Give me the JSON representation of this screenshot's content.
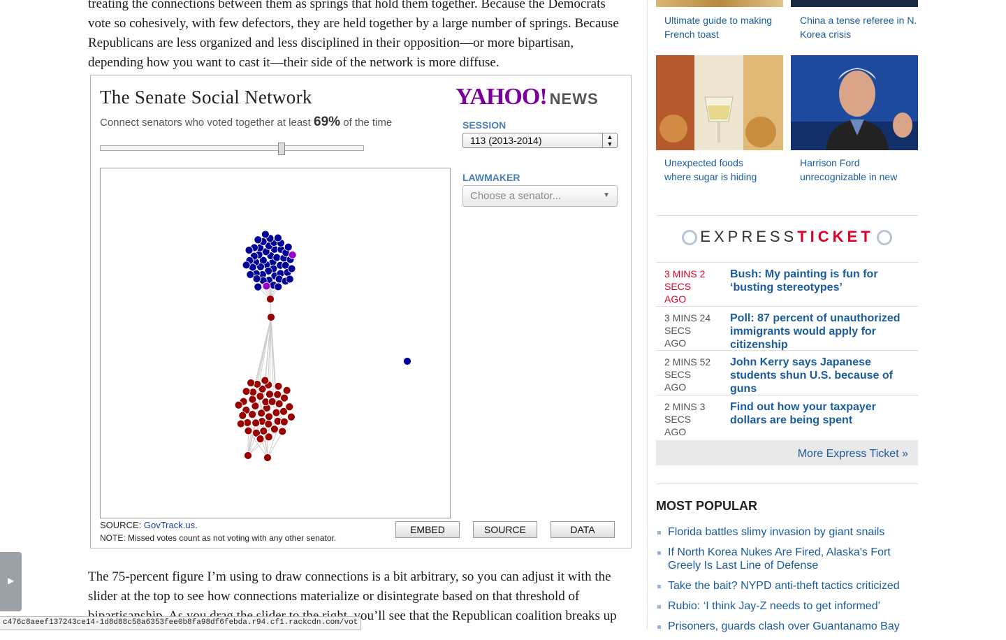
{
  "article": {
    "top_lines": [
      "treating the connections between them as springs that hold them together. Because the Democrats",
      "vote so cohesively, with few defectors, they are held together by a large number of springs. Because",
      "Republicans are less organized and less disciplined in their opposition—or more bipartisan,",
      "depending how you want to cast it—their side of the network is more diffuse."
    ],
    "bottom_lines": [
      "The 75-percent figure I’m using to draw connections is a bit arbitrary, so you can adjust it with the",
      "slider at the top to see how connections materialize or disintegrate based on that threshold of",
      "bipartisanship. As you drag the slider to the right, you’ll see that the Republican coalition breaks up"
    ]
  },
  "widget": {
    "title": "The Senate Social Network",
    "subtitle_pre": "Connect senators who voted together at least",
    "threshold": "69%",
    "subtitle_post": "of the time",
    "slider_fraction": 0.69,
    "logo_yahoo": "YAHOO!",
    "logo_news": "NEWS",
    "session_label": "SESSION",
    "session_value": "113 (2013-2014)",
    "lawmaker_label": "LAWMAKER",
    "lawmaker_placeholder": "Choose a senator...",
    "source_label": "SOURCE:",
    "source_link": "GovTrack.us",
    "note": "NOTE: Missed votes count as not voting with any other senator.",
    "buttons": {
      "embed": "EMBED",
      "source": "SOURCE",
      "data": "DATA"
    },
    "colors": {
      "democrat": "#000099",
      "republican": "#990000",
      "independent": "#9900cc"
    }
  },
  "sidebar": {
    "top_links": [
      "Ultimate guide to making French toast",
      "China a tense referee in N. Korea crisis"
    ],
    "cards": [
      {
        "line1": "Unexpected foods",
        "line2": "where sugar is hiding"
      },
      {
        "line1": "Harrison Ford",
        "line2": "unrecognizable in new"
      }
    ],
    "express": {
      "word1": "EXPRESS",
      "word2": "TICKET",
      "items": [
        {
          "time": [
            "3 MINS 2",
            "SECS",
            "AGO"
          ],
          "title": "Bush: My painting is fun for ‘busting stereotypes’",
          "fresh": true
        },
        {
          "time": [
            "3 MINS 24",
            "SECS",
            "AGO"
          ],
          "title": "Poll: 87 percent of unauthorized immigrants would apply for citizenship",
          "fresh": false
        },
        {
          "time": [
            "2 MINS 52",
            "SECS",
            "AGO"
          ],
          "title": "John Kerry says Japanese students shun U.S. because of guns",
          "fresh": false
        },
        {
          "time": [
            "2 MINS 3",
            "SECS",
            "AGO"
          ],
          "title": "Find out how your taxpayer dollars are being spent",
          "fresh": false
        }
      ],
      "more": "More Express Ticket »"
    },
    "most_popular": {
      "heading": "MOST POPULAR",
      "items": [
        "Florida battles slimy invasion by giant snails",
        "If North Korea Nukes Are Fired, Alaska's Fort Greely Is Last Line of Defense",
        "Take the bait? NYPD anti-theft tactics criticized",
        "Rubio: ‘I think Jay-Z needs to get informed’",
        "Prisoners, guards clash over Guantanamo Bay"
      ]
    }
  },
  "status_bar": "c476c8aeef137243ce14-1d8d88c58a6353fee0b8fa98df6febda.r94.cf1.rackcdn.com/vot"
}
